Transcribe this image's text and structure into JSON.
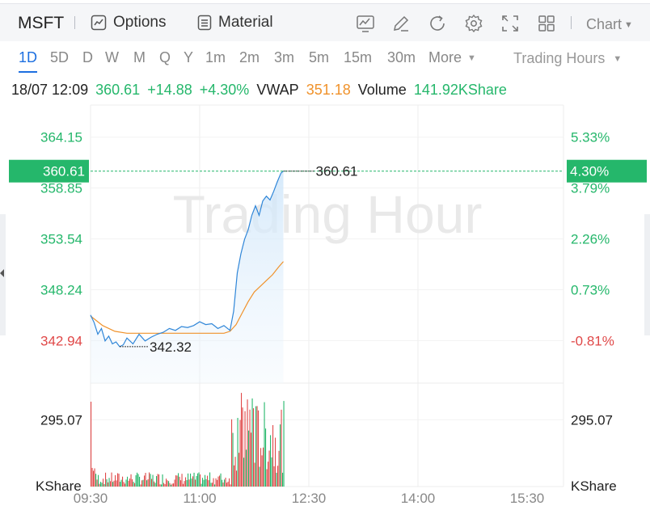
{
  "toolbar": {
    "symbol": "MSFT",
    "options_label": "Options",
    "material_label": "Material",
    "chart_label": "Chart",
    "icons": [
      "indicator-icon",
      "draw-icon",
      "refresh-icon",
      "settings-icon",
      "fullscreen-icon",
      "layout-icon"
    ]
  },
  "periods": {
    "items": [
      "1D",
      "5D",
      "D",
      "W",
      "M",
      "Q",
      "Y",
      "1m",
      "2m",
      "3m",
      "5m",
      "15m",
      "30m",
      "More"
    ],
    "active": "1D",
    "session_label": "Trading Hours"
  },
  "info": {
    "datetime": "18/07 12:09",
    "price": "360.61",
    "change": "+14.88",
    "change_pct": "+4.30%",
    "vwap_label": "VWAP",
    "vwap": "351.18",
    "volume_label": "Volume",
    "volume": "141.92KShare"
  },
  "colors": {
    "up": "#25b76b",
    "down": "#e04848",
    "price_line": "#2f86d8",
    "vwap_line": "#f0922b",
    "accent": "#1d6fe0"
  },
  "chart_data": {
    "type": "line",
    "watermark": "Trading Hour",
    "price_axis": {
      "labels": [
        "364.15",
        "358.85",
        "353.54",
        "348.24",
        "342.94"
      ],
      "values": [
        364.15,
        358.85,
        353.54,
        348.24,
        342.94
      ]
    },
    "pct_axis": {
      "labels": [
        "5.33%",
        "3.79%",
        "2.26%",
        "0.73%",
        "-0.81%"
      ],
      "values": [
        5.33,
        3.79,
        2.26,
        0.73,
        -0.81
      ]
    },
    "ylim": [
      338.5,
      367.5
    ],
    "x_labels": [
      "09:30",
      "11:00",
      "12:30",
      "14:00",
      "15:30"
    ],
    "x_label_minutes": [
      0,
      90,
      180,
      270,
      360
    ],
    "xlim": [
      0,
      390
    ],
    "current_price": "360.61",
    "current_pct": "4.30%",
    "high_label": "360.61",
    "low_label": "342.32",
    "price_series": {
      "name": "Price",
      "x": [
        0,
        3,
        6,
        9,
        12,
        15,
        18,
        21,
        24,
        27,
        30,
        35,
        40,
        45,
        50,
        55,
        60,
        65,
        70,
        75,
        80,
        85,
        90,
        95,
        100,
        105,
        110,
        115,
        118,
        121,
        124,
        127,
        130,
        133,
        136,
        139,
        142,
        145,
        148,
        151,
        154,
        157,
        159
      ],
      "values": [
        345.6,
        344.8,
        343.6,
        344.2,
        342.9,
        343.4,
        342.6,
        342.8,
        342.3,
        342.5,
        343.2,
        342.6,
        343.6,
        342.9,
        343.3,
        343.6,
        343.8,
        344.2,
        344.0,
        344.4,
        344.3,
        344.5,
        344.9,
        344.6,
        344.7,
        344.2,
        344.5,
        344.0,
        346.0,
        350.0,
        352.0,
        353.5,
        354.5,
        356.0,
        357.0,
        356.0,
        357.5,
        358.0,
        357.6,
        358.5,
        359.5,
        360.4,
        360.61
      ]
    },
    "vwap_series": {
      "name": "VWAP",
      "x": [
        0,
        10,
        20,
        30,
        40,
        50,
        60,
        70,
        80,
        90,
        100,
        110,
        115,
        120,
        125,
        130,
        135,
        140,
        145,
        150,
        155,
        159
      ],
      "values": [
        345.5,
        344.5,
        343.9,
        343.7,
        343.7,
        343.7,
        343.7,
        343.7,
        343.7,
        343.7,
        343.7,
        343.7,
        343.9,
        344.6,
        345.8,
        347.0,
        348.0,
        348.6,
        349.2,
        349.8,
        350.6,
        351.18
      ]
    },
    "volume_axis": {
      "label": "295.07",
      "value": 295.07,
      "unit": "KShare",
      "ymax": 450
    }
  }
}
